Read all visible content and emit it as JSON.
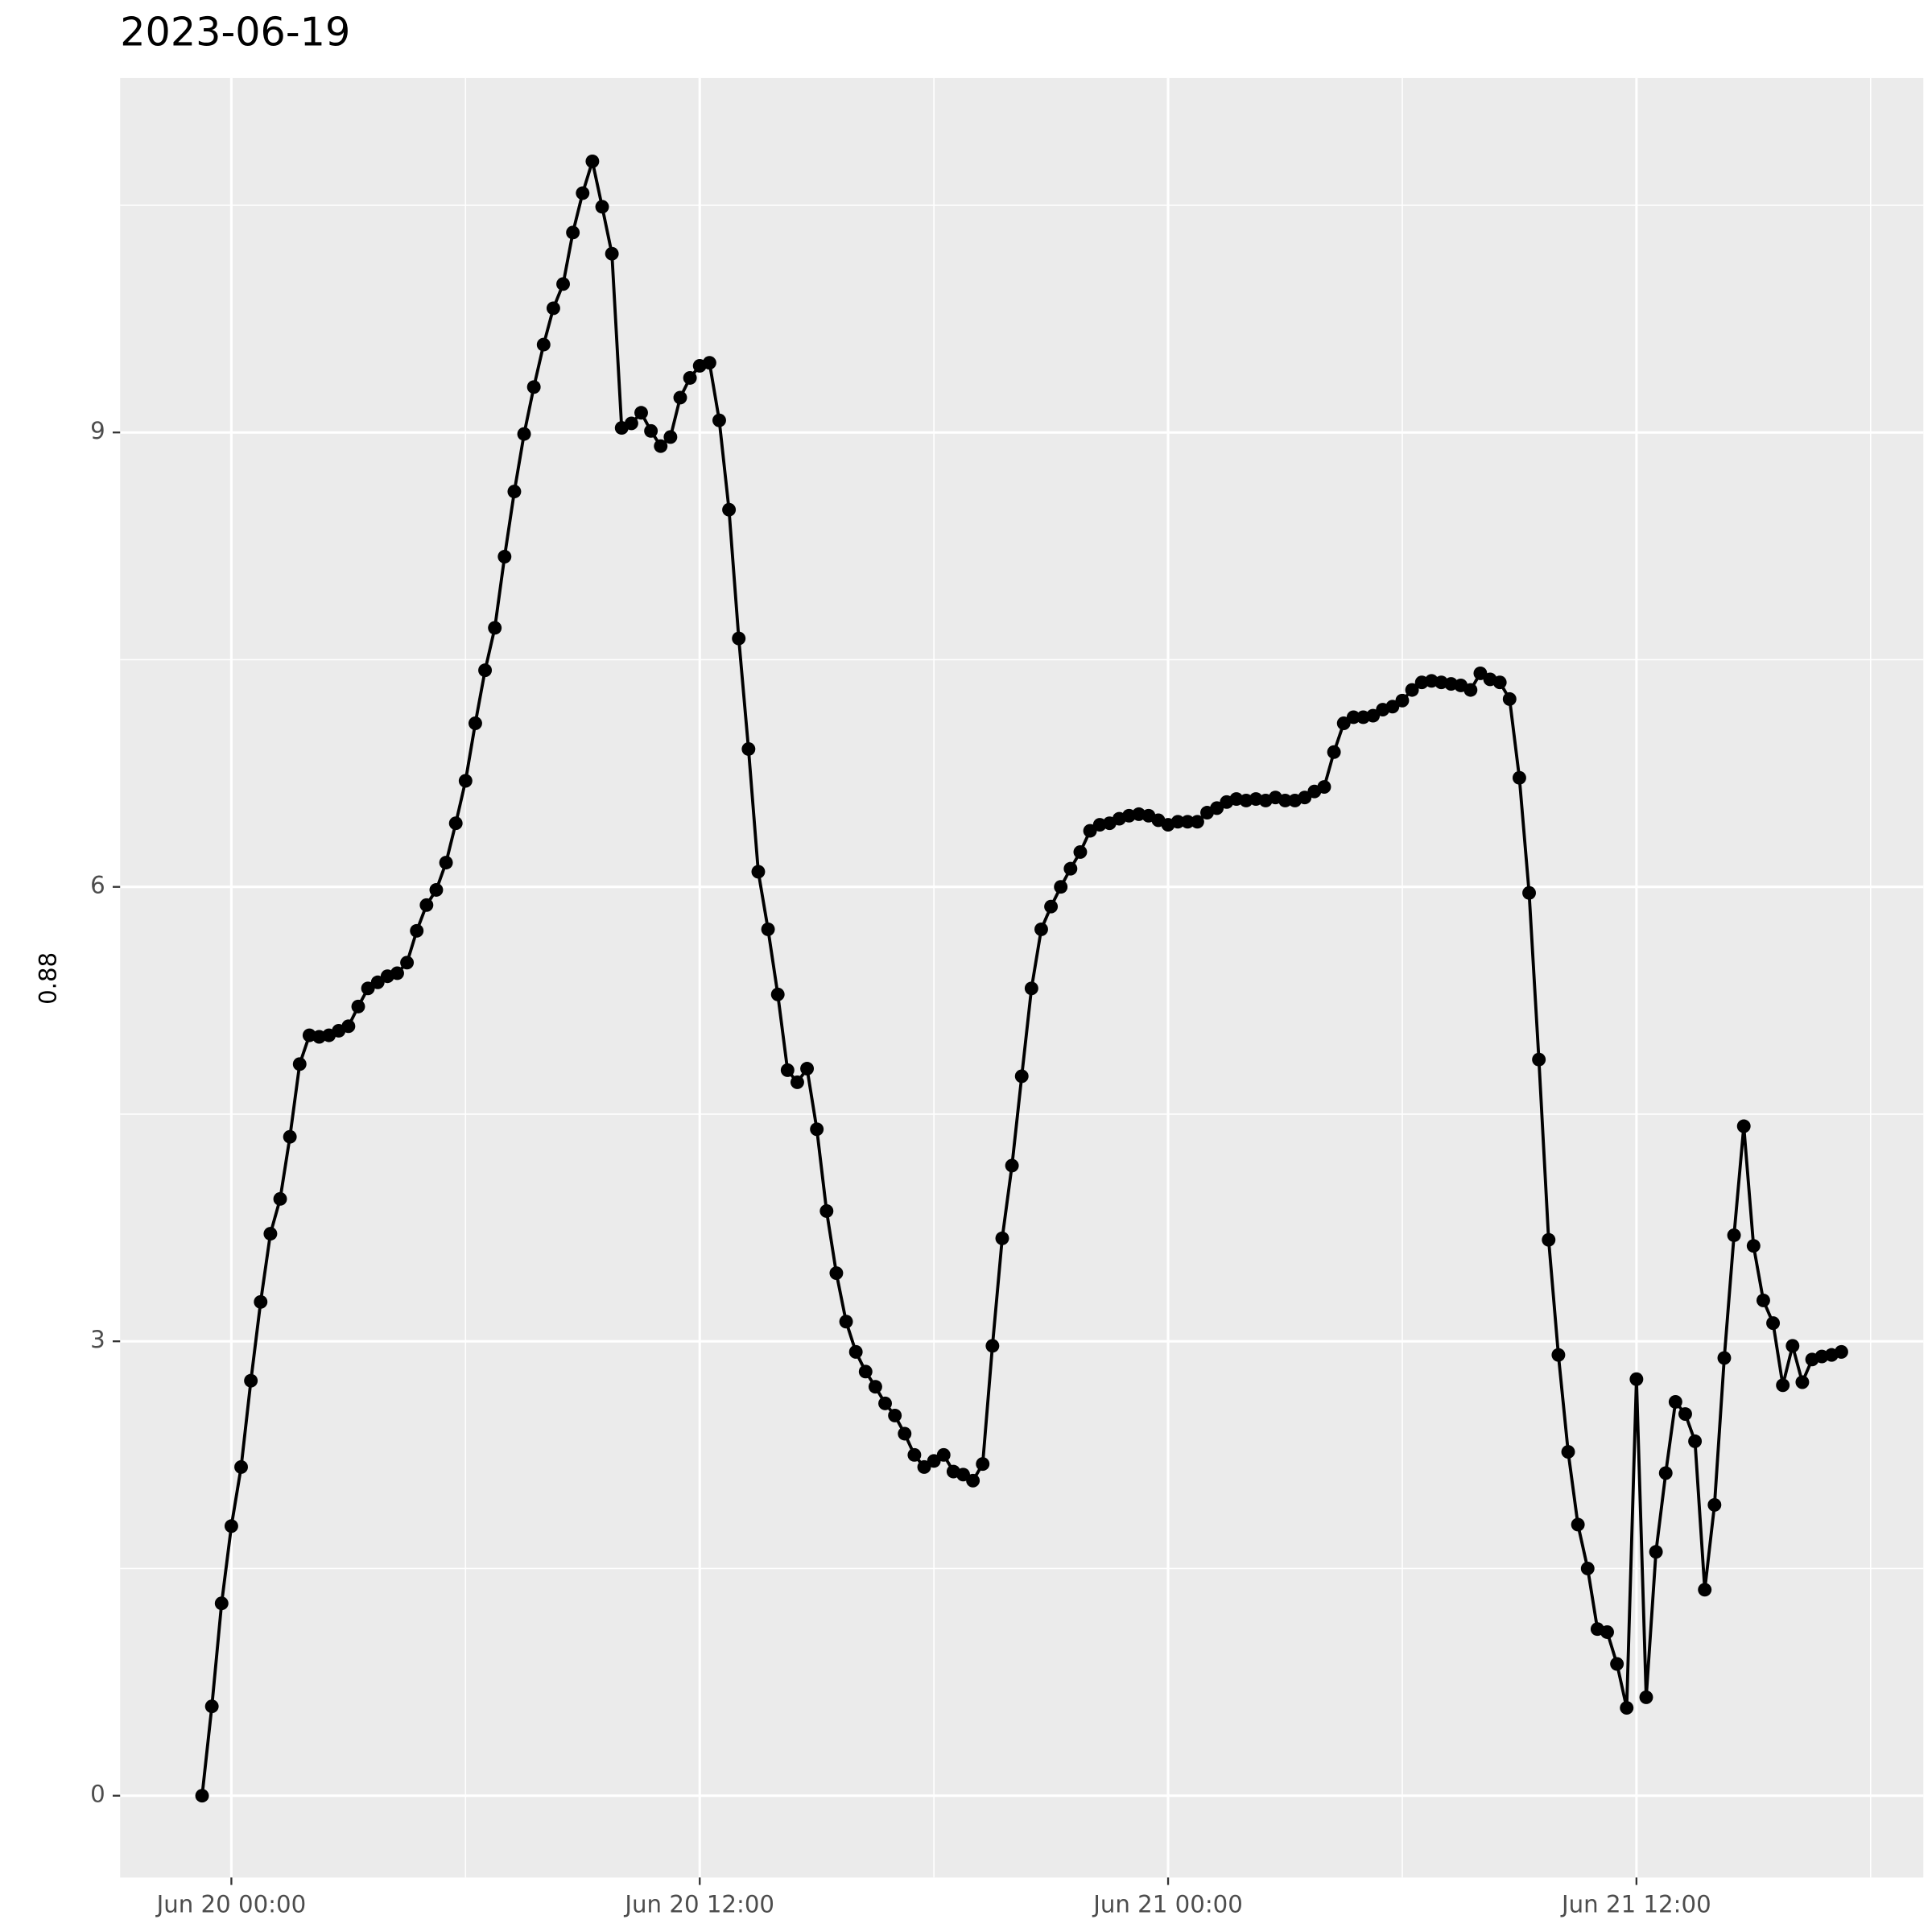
{
  "chart_data": {
    "type": "line",
    "title": "2023-06-19",
    "ylabel": "0.88",
    "x": [
      "Jun 19 23:15",
      "Jun 19 23:30",
      "Jun 19 23:45",
      "Jun 20 00:00",
      "Jun 20 00:15",
      "Jun 20 00:30",
      "Jun 20 00:45",
      "Jun 20 01:00",
      "Jun 20 01:15",
      "Jun 20 01:30",
      "Jun 20 01:45",
      "Jun 20 02:00",
      "Jun 20 02:15",
      "Jun 20 02:30",
      "Jun 20 02:45",
      "Jun 20 03:00",
      "Jun 20 03:15",
      "Jun 20 03:30",
      "Jun 20 03:45",
      "Jun 20 04:00",
      "Jun 20 04:15",
      "Jun 20 04:30",
      "Jun 20 04:45",
      "Jun 20 05:00",
      "Jun 20 05:15",
      "Jun 20 05:30",
      "Jun 20 05:45",
      "Jun 20 06:00",
      "Jun 20 06:15",
      "Jun 20 06:30",
      "Jun 20 06:45",
      "Jun 20 07:00",
      "Jun 20 07:15",
      "Jun 20 07:30",
      "Jun 20 07:45",
      "Jun 20 08:00",
      "Jun 20 08:15",
      "Jun 20 08:30",
      "Jun 20 08:45",
      "Jun 20 09:00",
      "Jun 20 09:15",
      "Jun 20 09:30",
      "Jun 20 09:45",
      "Jun 20 10:00",
      "Jun 20 10:15",
      "Jun 20 10:30",
      "Jun 20 10:45",
      "Jun 20 11:00",
      "Jun 20 11:15",
      "Jun 20 11:30",
      "Jun 20 11:45",
      "Jun 20 12:00",
      "Jun 20 12:15",
      "Jun 20 12:30",
      "Jun 20 12:45",
      "Jun 20 13:00",
      "Jun 20 13:15",
      "Jun 20 13:30",
      "Jun 20 13:45",
      "Jun 20 14:00",
      "Jun 20 14:15",
      "Jun 20 14:30",
      "Jun 20 14:45",
      "Jun 20 15:00",
      "Jun 20 15:15",
      "Jun 20 15:30",
      "Jun 20 15:45",
      "Jun 20 16:00",
      "Jun 20 16:15",
      "Jun 20 16:30",
      "Jun 20 16:45",
      "Jun 20 17:00",
      "Jun 20 17:15",
      "Jun 20 17:30",
      "Jun 20 17:45",
      "Jun 20 18:00",
      "Jun 20 18:15",
      "Jun 20 18:30",
      "Jun 20 18:45",
      "Jun 20 19:00",
      "Jun 20 19:15",
      "Jun 20 19:30",
      "Jun 20 19:45",
      "Jun 20 20:00",
      "Jun 20 20:15",
      "Jun 20 20:30",
      "Jun 20 20:45",
      "Jun 20 21:00",
      "Jun 20 21:15",
      "Jun 20 21:30",
      "Jun 20 21:45",
      "Jun 20 22:00",
      "Jun 20 22:15",
      "Jun 20 22:30",
      "Jun 20 22:45",
      "Jun 20 23:00",
      "Jun 20 23:15",
      "Jun 20 23:30",
      "Jun 20 23:45",
      "Jun 21 00:00",
      "Jun 21 00:15",
      "Jun 21 00:30",
      "Jun 21 00:45",
      "Jun 21 01:00",
      "Jun 21 01:15",
      "Jun 21 01:30",
      "Jun 21 01:45",
      "Jun 21 02:00",
      "Jun 21 02:15",
      "Jun 21 02:30",
      "Jun 21 02:45",
      "Jun 21 03:00",
      "Jun 21 03:15",
      "Jun 21 03:30",
      "Jun 21 03:45",
      "Jun 21 04:00",
      "Jun 21 04:15",
      "Jun 21 04:30",
      "Jun 21 04:45",
      "Jun 21 05:00",
      "Jun 21 05:15",
      "Jun 21 05:30",
      "Jun 21 05:45",
      "Jun 21 06:00",
      "Jun 21 06:15",
      "Jun 21 06:30",
      "Jun 21 06:45",
      "Jun 21 07:00",
      "Jun 21 07:15",
      "Jun 21 07:30",
      "Jun 21 07:45",
      "Jun 21 08:00",
      "Jun 21 08:15",
      "Jun 21 08:30",
      "Jun 21 08:45",
      "Jun 21 09:00",
      "Jun 21 09:15",
      "Jun 21 09:30",
      "Jun 21 09:45",
      "Jun 21 10:00",
      "Jun 21 10:15",
      "Jun 21 10:30",
      "Jun 21 10:45",
      "Jun 21 11:00",
      "Jun 21 11:15",
      "Jun 21 11:30",
      "Jun 21 11:45",
      "Jun 21 12:00",
      "Jun 21 12:15",
      "Jun 21 12:30",
      "Jun 21 12:45",
      "Jun 21 13:00",
      "Jun 21 13:15",
      "Jun 21 13:30",
      "Jun 21 13:45",
      "Jun 21 14:00",
      "Jun 21 14:15",
      "Jun 21 14:30",
      "Jun 21 14:45",
      "Jun 21 15:00",
      "Jun 21 15:15",
      "Jun 21 15:30",
      "Jun 21 15:45",
      "Jun 21 16:00",
      "Jun 21 16:15",
      "Jun 21 16:30",
      "Jun 21 16:45",
      "Jun 21 17:00",
      "Jun 21 17:15"
    ],
    "values": [
      0,
      0.59,
      1.27,
      1.78,
      2.17,
      2.74,
      3.26,
      3.71,
      3.94,
      4.35,
      4.83,
      5.02,
      5.01,
      5.02,
      5.05,
      5.08,
      5.21,
      5.33,
      5.37,
      5.41,
      5.43,
      5.5,
      5.71,
      5.88,
      5.98,
      6.16,
      6.42,
      6.7,
      7.08,
      7.43,
      7.71,
      8.18,
      8.61,
      8.99,
      9.3,
      9.58,
      9.82,
      9.98,
      10.32,
      10.58,
      10.79,
      10.49,
      10.18,
      9.03,
      9.06,
      9.13,
      9.01,
      8.91,
      8.97,
      9.23,
      9.36,
      9.44,
      9.46,
      9.08,
      8.49,
      7.64,
      6.91,
      6.1,
      5.72,
      5.29,
      4.79,
      4.71,
      4.8,
      4.4,
      3.86,
      3.45,
      3.13,
      2.93,
      2.8,
      2.7,
      2.59,
      2.51,
      2.39,
      2.25,
      2.17,
      2.21,
      2.25,
      2.14,
      2.12,
      2.08,
      2.19,
      2.97,
      3.68,
      4.16,
      4.75,
      5.33,
      5.72,
      5.87,
      6.0,
      6.12,
      6.23,
      6.37,
      6.41,
      6.42,
      6.45,
      6.47,
      6.48,
      6.47,
      6.44,
      6.41,
      6.43,
      6.43,
      6.43,
      6.49,
      6.52,
      6.56,
      6.58,
      6.57,
      6.58,
      6.57,
      6.59,
      6.57,
      6.57,
      6.59,
      6.63,
      6.66,
      6.89,
      7.08,
      7.12,
      7.12,
      7.13,
      7.17,
      7.19,
      7.23,
      7.3,
      7.35,
      7.36,
      7.35,
      7.34,
      7.33,
      7.3,
      7.41,
      7.37,
      7.35,
      7.24,
      6.72,
      5.96,
      4.86,
      3.67,
      2.91,
      2.27,
      1.79,
      1.5,
      1.1,
      1.08,
      0.87,
      0.58,
      2.75,
      0.65,
      1.61,
      2.13,
      2.6,
      2.52,
      2.34,
      1.36,
      1.92,
      2.89,
      3.7,
      4.42,
      3.63,
      3.27,
      3.12,
      2.71,
      2.97,
      2.73,
      2.88,
      2.9,
      2.91,
      2.93
    ],
    "color": "#000000",
    "markers": true,
    "grid": true,
    "xlim": [
      "Jun 19 21:09",
      "Jun 21 19:21"
    ],
    "xticks": [
      "Jun 20 00:00",
      "Jun 20 12:00",
      "Jun 21 00:00",
      "Jun 21 12:00"
    ],
    "ylim": [
      -0.54,
      11.34
    ],
    "yticks": [
      0,
      3,
      6,
      9
    ]
  }
}
